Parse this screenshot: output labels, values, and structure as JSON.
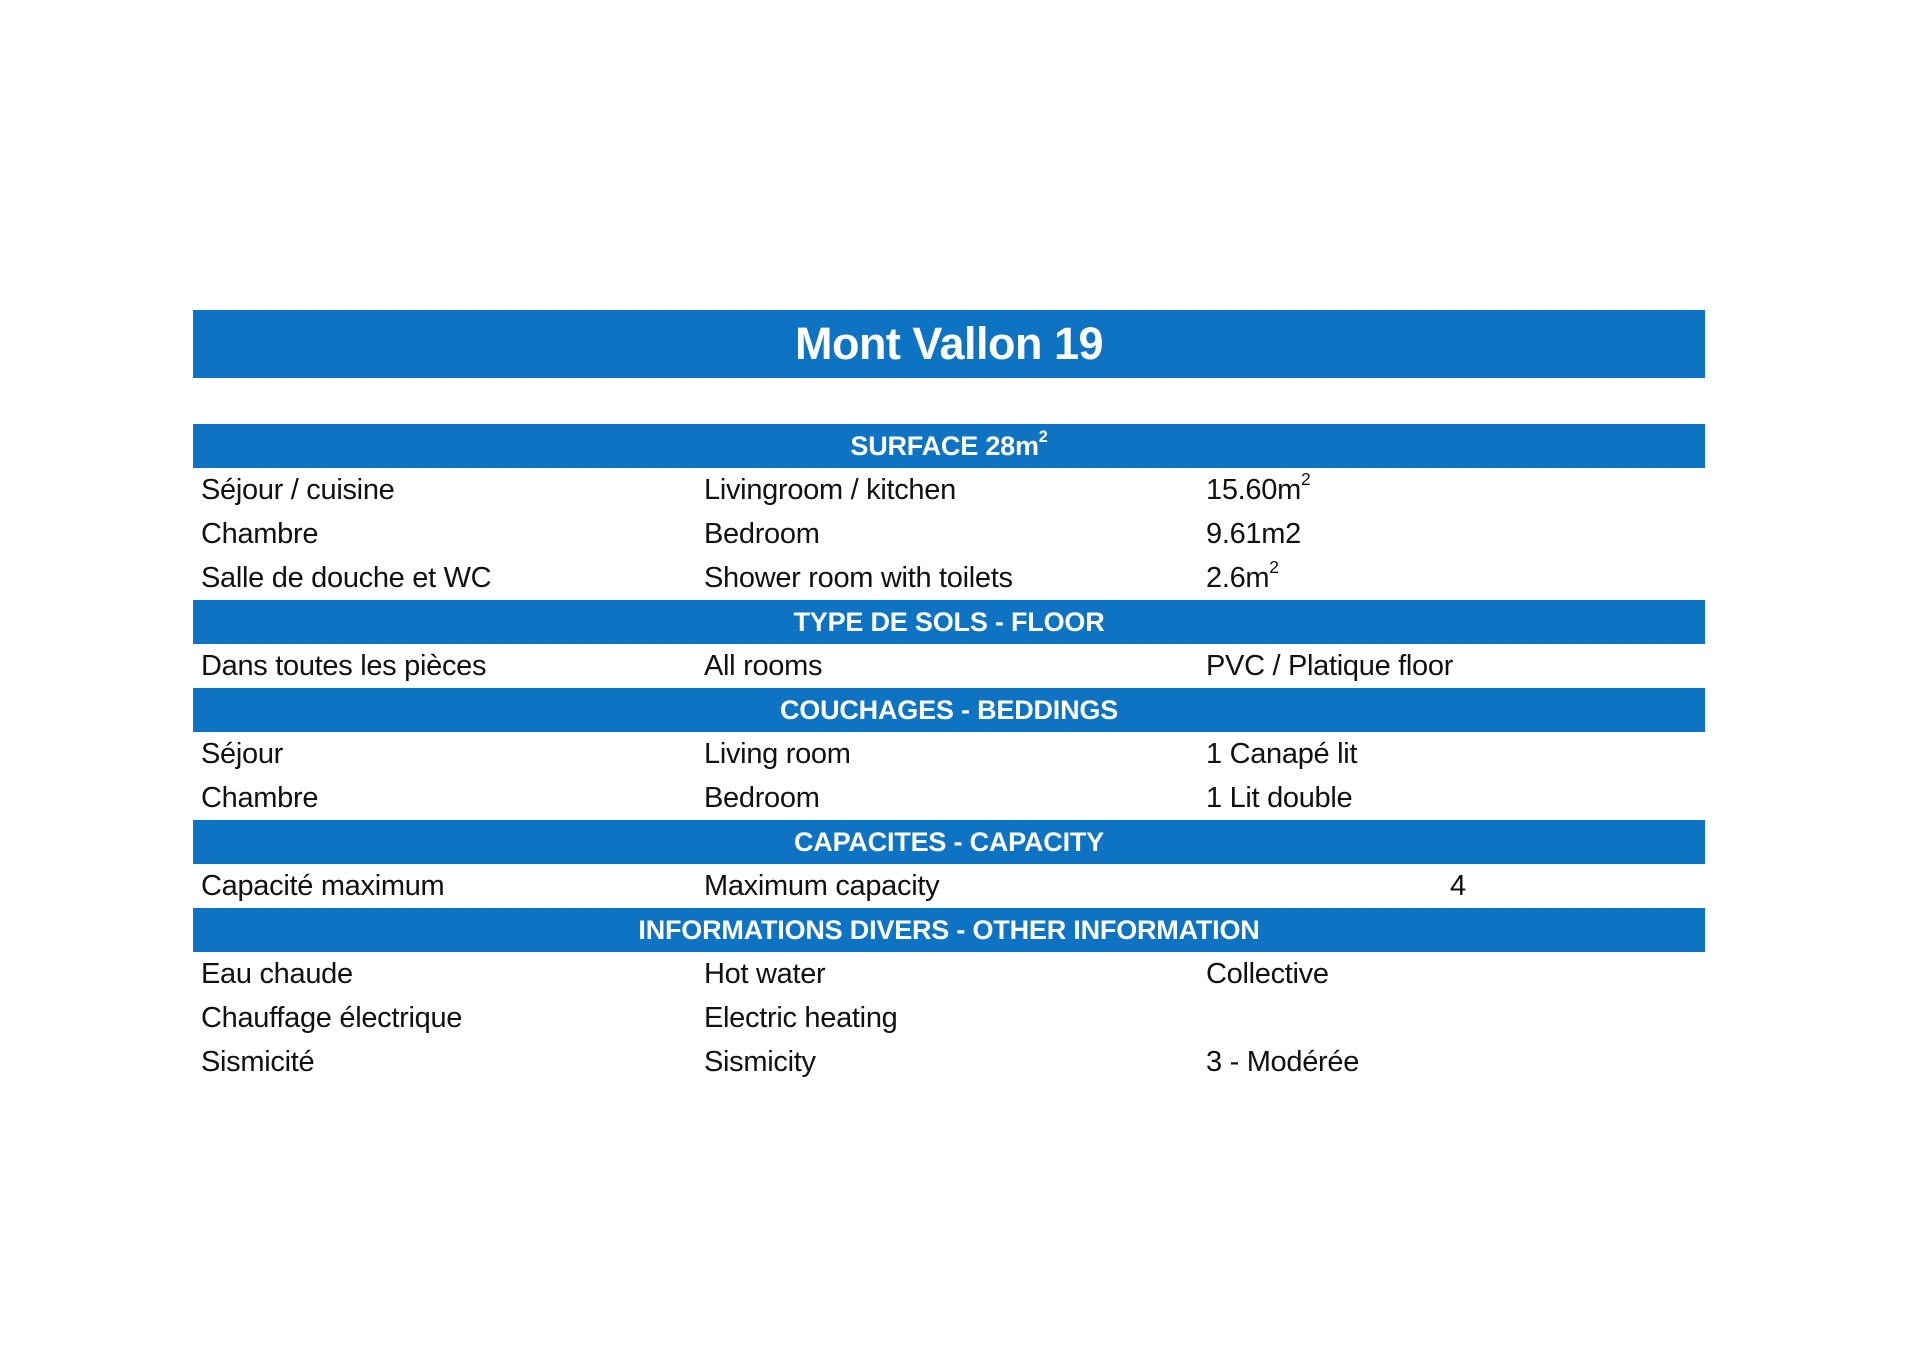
{
  "colors": {
    "accent_blue": "#0d73c2",
    "bar_text": "#ffffff",
    "body_text": "#111111",
    "background": "#ffffff"
  },
  "title": "Mont Vallon 19",
  "sections": [
    {
      "header": "SURFACE 28m",
      "header_sup": "2",
      "rows": [
        {
          "fr": "Séjour / cuisine",
          "en": "Livingroom / kitchen",
          "value": "15.60m",
          "value_sup": "2"
        },
        {
          "fr": "Chambre",
          "en": "Bedroom",
          "value": "9.61m2",
          "value_sup": ""
        },
        {
          "fr": "Salle de douche et WC",
          "en": "Shower room with toilets",
          "value": "2.6m",
          "value_sup": "2"
        }
      ]
    },
    {
      "header": "TYPE DE SOLS - FLOOR",
      "header_sup": "",
      "rows": [
        {
          "fr": "Dans toutes les pièces",
          "en": "All rooms",
          "value": "PVC / Platique floor",
          "value_sup": ""
        }
      ]
    },
    {
      "header": "COUCHAGES - BEDDINGS",
      "header_sup": "",
      "rows": [
        {
          "fr": "Séjour",
          "en": "Living room",
          "value": "1 Canapé lit",
          "value_sup": ""
        },
        {
          "fr": "Chambre",
          "en": "Bedroom",
          "value": "1 Lit double",
          "value_sup": ""
        }
      ]
    },
    {
      "header": "CAPACITES - CAPACITY",
      "header_sup": "",
      "rows": [
        {
          "fr": "Capacité maximum",
          "en": "Maximum capacity",
          "value": "4",
          "value_sup": ""
        }
      ]
    },
    {
      "header": "INFORMATIONS DIVERS - OTHER INFORMATION",
      "header_sup": "",
      "rows": [
        {
          "fr": "Eau chaude",
          "en": "Hot water",
          "value": "Collective",
          "value_sup": ""
        },
        {
          "fr": "Chauffage électrique",
          "en": "Electric heating",
          "value": "",
          "value_sup": ""
        },
        {
          "fr": "Sismicité",
          "en": "Sismicity",
          "value": "3 - Modérée",
          "value_sup": ""
        }
      ]
    }
  ]
}
